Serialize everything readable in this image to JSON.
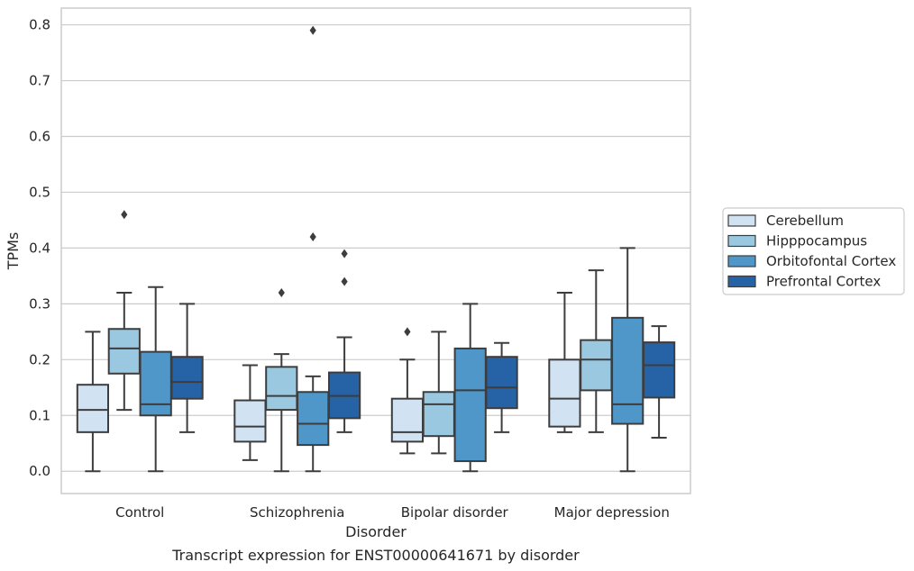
{
  "chart_data": {
    "type": "box",
    "caption": "Transcript expression for ENST00000641671 by disorder",
    "xlabel": "Disorder",
    "ylabel": "TPMs",
    "ylim": [
      -0.04,
      0.83
    ],
    "yticks": [
      0.0,
      0.1,
      0.2,
      0.3,
      0.4,
      0.5,
      0.6,
      0.7,
      0.8
    ],
    "ytick_labels": [
      "0.0",
      "0.1",
      "0.2",
      "0.3",
      "0.4",
      "0.5",
      "0.6",
      "0.7",
      "0.8"
    ],
    "grid": true,
    "legend_position": "outside-right",
    "categories": [
      "Control",
      "Schizophrenia",
      "Bipolar disorder",
      "Major depression"
    ],
    "series": [
      {
        "name": "Cerebellum",
        "color": "#d1e2f2",
        "boxes": [
          {
            "whisker_low": 0.0,
            "q1": 0.07,
            "median": 0.11,
            "q3": 0.155,
            "whisker_high": 0.25,
            "outliers": []
          },
          {
            "whisker_low": 0.02,
            "q1": 0.053,
            "median": 0.08,
            "q3": 0.127,
            "whisker_high": 0.19,
            "outliers": []
          },
          {
            "whisker_low": 0.032,
            "q1": 0.053,
            "median": 0.07,
            "q3": 0.13,
            "whisker_high": 0.2,
            "outliers": [
              0.25
            ]
          },
          {
            "whisker_low": 0.07,
            "q1": 0.08,
            "median": 0.13,
            "q3": 0.2,
            "whisker_high": 0.32,
            "outliers": []
          }
        ]
      },
      {
        "name": "Hipppocampus",
        "color": "#9ac8e0",
        "boxes": [
          {
            "whisker_low": 0.11,
            "q1": 0.175,
            "median": 0.22,
            "q3": 0.255,
            "whisker_high": 0.32,
            "outliers": [
              0.46
            ]
          },
          {
            "whisker_low": 0.0,
            "q1": 0.11,
            "median": 0.135,
            "q3": 0.187,
            "whisker_high": 0.21,
            "outliers": [
              0.32
            ]
          },
          {
            "whisker_low": 0.032,
            "q1": 0.063,
            "median": 0.12,
            "q3": 0.142,
            "whisker_high": 0.25,
            "outliers": []
          },
          {
            "whisker_low": 0.07,
            "q1": 0.145,
            "median": 0.2,
            "q3": 0.235,
            "whisker_high": 0.36,
            "outliers": []
          }
        ]
      },
      {
        "name": "Orbitofontal Cortex",
        "color": "#5097c9",
        "boxes": [
          {
            "whisker_low": 0.0,
            "q1": 0.1,
            "median": 0.12,
            "q3": 0.214,
            "whisker_high": 0.33,
            "outliers": []
          },
          {
            "whisker_low": 0.0,
            "q1": 0.047,
            "median": 0.085,
            "q3": 0.142,
            "whisker_high": 0.17,
            "outliers": [
              0.79,
              0.42
            ]
          },
          {
            "whisker_low": 0.0,
            "q1": 0.018,
            "median": 0.145,
            "q3": 0.22,
            "whisker_high": 0.3,
            "outliers": []
          },
          {
            "whisker_low": 0.0,
            "q1": 0.085,
            "median": 0.12,
            "q3": 0.275,
            "whisker_high": 0.4,
            "outliers": []
          }
        ]
      },
      {
        "name": "Prefrontal Cortex",
        "color": "#2563a6",
        "boxes": [
          {
            "whisker_low": 0.07,
            "q1": 0.13,
            "median": 0.16,
            "q3": 0.205,
            "whisker_high": 0.3,
            "outliers": []
          },
          {
            "whisker_low": 0.07,
            "q1": 0.095,
            "median": 0.135,
            "q3": 0.177,
            "whisker_high": 0.24,
            "outliers": [
              0.39,
              0.34
            ]
          },
          {
            "whisker_low": 0.07,
            "q1": 0.113,
            "median": 0.15,
            "q3": 0.205,
            "whisker_high": 0.23,
            "outliers": []
          },
          {
            "whisker_low": 0.06,
            "q1": 0.132,
            "median": 0.19,
            "q3": 0.231,
            "whisker_high": 0.26,
            "outliers": []
          }
        ]
      }
    ]
  }
}
